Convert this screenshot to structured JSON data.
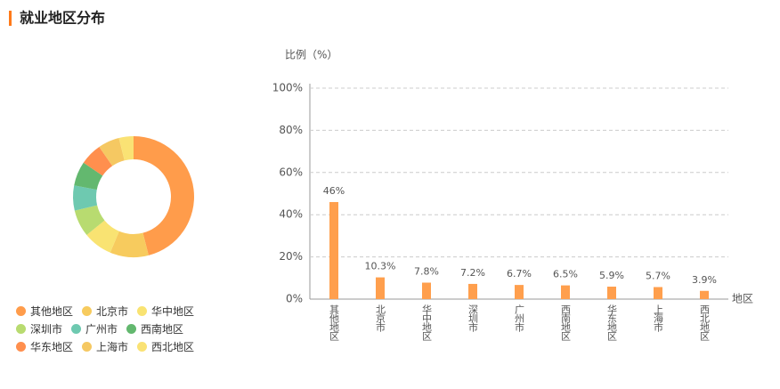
{
  "header": {
    "title": "就业地区分布"
  },
  "chart_data": [
    {
      "type": "pie",
      "categories": [
        "其他地区",
        "北京市",
        "华中地区",
        "深圳市",
        "广州市",
        "西南地区",
        "华东地区",
        "上海市",
        "西北地区"
      ],
      "values": [
        46,
        10.3,
        7.8,
        7.2,
        6.7,
        6.5,
        5.9,
        5.7,
        3.9
      ],
      "colors": [
        "#ff9c4b",
        "#f7cb5e",
        "#f9e372",
        "#b8db70",
        "#6ec9b0",
        "#63b86f",
        "#ff8f4e",
        "#f5c862",
        "#fae274"
      ]
    },
    {
      "type": "bar",
      "categories": [
        "其他地区",
        "北京市",
        "华中地区",
        "深圳市",
        "广州市",
        "西南地区",
        "华东地区",
        "上海市",
        "西北地区"
      ],
      "values": [
        46,
        10.3,
        7.8,
        7.2,
        6.7,
        6.5,
        5.9,
        5.7,
        3.9
      ],
      "value_labels": [
        "46%",
        "10.3%",
        "7.8%",
        "7.2%",
        "6.7%",
        "6.5%",
        "5.9%",
        "5.7%",
        "3.9%"
      ],
      "color": "#ff9f4d",
      "ylim": [
        0,
        100
      ],
      "yticks": [
        {
          "value": 0,
          "label": "0%"
        },
        {
          "value": 20,
          "label": "20%"
        },
        {
          "value": 40,
          "label": "40%"
        },
        {
          "value": 60,
          "label": "60%"
        },
        {
          "value": 80,
          "label": "80%"
        },
        {
          "value": 100,
          "label": "100%"
        }
      ],
      "y_label": "比例（%）",
      "x_label": "地区",
      "grid": true
    }
  ]
}
